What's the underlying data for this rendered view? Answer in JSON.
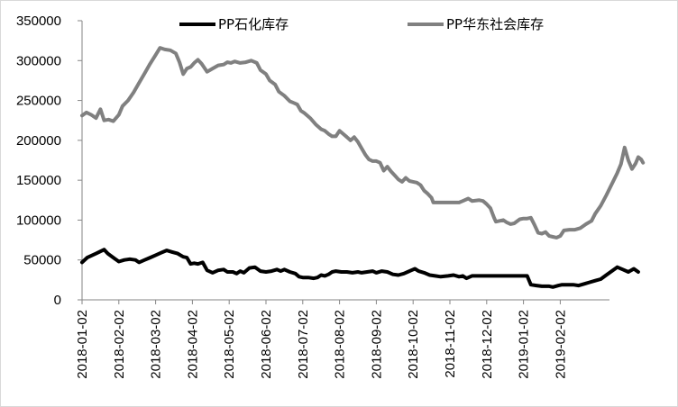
{
  "chart_data": {
    "type": "line",
    "title": "",
    "xlabel": "",
    "ylabel": "",
    "ylim": [
      0,
      350000
    ],
    "y_ticks": [
      "0",
      "50000",
      "100000",
      "150000",
      "200000",
      "250000",
      "300000",
      "350000"
    ],
    "x_tick_labels": [
      "2018-01-02",
      "2018-02-02",
      "2018-03-02",
      "2018-04-02",
      "2018-05-02",
      "2018-06-02",
      "2018-07-02",
      "2018-08-02",
      "2018-09-02",
      "2018-10-02",
      "2018-11-02",
      "2018-12-02",
      "2019-01-02",
      "2019-02-02"
    ],
    "grid": false,
    "legend_position": "top",
    "series": [
      {
        "name": "PP石化库存",
        "color": "#000000",
        "points": [
          [
            0,
            47000
          ],
          [
            0.14,
            53000
          ],
          [
            0.38,
            58000
          ],
          [
            0.6,
            63000
          ],
          [
            0.7,
            58000
          ],
          [
            0.85,
            53000
          ],
          [
            1.0,
            48000
          ],
          [
            1.15,
            50000
          ],
          [
            1.3,
            51000
          ],
          [
            1.45,
            50000
          ],
          [
            1.55,
            47000
          ],
          [
            1.7,
            50000
          ],
          [
            1.85,
            53000
          ],
          [
            2.0,
            56000
          ],
          [
            2.15,
            59000
          ],
          [
            2.3,
            62000
          ],
          [
            2.45,
            60000
          ],
          [
            2.6,
            58000
          ],
          [
            2.75,
            54000
          ],
          [
            2.85,
            53000
          ],
          [
            2.95,
            45000
          ],
          [
            3.05,
            46000
          ],
          [
            3.15,
            45000
          ],
          [
            3.28,
            47000
          ],
          [
            3.4,
            37000
          ],
          [
            3.55,
            34000
          ],
          [
            3.7,
            37000
          ],
          [
            3.85,
            38000
          ],
          [
            3.95,
            35000
          ],
          [
            4.1,
            35000
          ],
          [
            4.2,
            33000
          ],
          [
            4.3,
            36000
          ],
          [
            4.4,
            34000
          ],
          [
            4.55,
            40000
          ],
          [
            4.7,
            41000
          ],
          [
            4.85,
            36000
          ],
          [
            5.0,
            35000
          ],
          [
            5.15,
            36000
          ],
          [
            5.3,
            38000
          ],
          [
            5.4,
            36000
          ],
          [
            5.5,
            38000
          ],
          [
            5.65,
            35000
          ],
          [
            5.8,
            33000
          ],
          [
            5.9,
            29000
          ],
          [
            6.0,
            28000
          ],
          [
            6.15,
            28000
          ],
          [
            6.3,
            27000
          ],
          [
            6.4,
            28000
          ],
          [
            6.5,
            31000
          ],
          [
            6.6,
            30000
          ],
          [
            6.7,
            32000
          ],
          [
            6.8,
            35000
          ],
          [
            6.9,
            36000
          ],
          [
            7.05,
            35000
          ],
          [
            7.2,
            35000
          ],
          [
            7.35,
            34000
          ],
          [
            7.5,
            35000
          ],
          [
            7.6,
            34000
          ],
          [
            7.75,
            35000
          ],
          [
            7.9,
            36000
          ],
          [
            8.0,
            34000
          ],
          [
            8.15,
            36000
          ],
          [
            8.3,
            35000
          ],
          [
            8.45,
            32000
          ],
          [
            8.6,
            31000
          ],
          [
            8.75,
            33000
          ],
          [
            8.85,
            35000
          ],
          [
            8.95,
            37000
          ],
          [
            9.05,
            39000
          ],
          [
            9.15,
            36000
          ],
          [
            9.3,
            34000
          ],
          [
            9.45,
            31000
          ],
          [
            9.6,
            30000
          ],
          [
            9.75,
            29000
          ],
          [
            9.95,
            30000
          ],
          [
            10.1,
            31000
          ],
          [
            10.25,
            29000
          ],
          [
            10.35,
            30000
          ],
          [
            10.45,
            27000
          ],
          [
            10.6,
            30000
          ],
          [
            10.8,
            30000
          ],
          [
            11.0,
            30000
          ],
          [
            11.3,
            30000
          ],
          [
            11.6,
            30000
          ],
          [
            11.8,
            30000
          ],
          [
            11.95,
            30000
          ],
          [
            12.1,
            30000
          ],
          [
            12.2,
            19000
          ],
          [
            12.35,
            18000
          ],
          [
            12.5,
            17000
          ],
          [
            12.7,
            17000
          ],
          [
            12.8,
            16000
          ],
          [
            12.95,
            18000
          ],
          [
            13.05,
            19000
          ],
          [
            13.2,
            19000
          ],
          [
            13.35,
            19000
          ],
          [
            13.5,
            18000
          ],
          [
            13.65,
            20000
          ],
          [
            13.8,
            22000
          ],
          [
            13.95,
            24000
          ],
          [
            14.1,
            26000
          ],
          [
            14.25,
            31000
          ],
          [
            14.4,
            36000
          ],
          [
            14.55,
            41000
          ],
          [
            14.7,
            38000
          ],
          [
            14.85,
            35000
          ],
          [
            15.0,
            39000
          ],
          [
            15.12,
            35000
          ]
        ]
      },
      {
        "name": "PP华东社会库存",
        "color": "#808080",
        "points": [
          [
            0,
            231000
          ],
          [
            0.12,
            235000
          ],
          [
            0.25,
            232000
          ],
          [
            0.38,
            228000
          ],
          [
            0.5,
            239000
          ],
          [
            0.6,
            225000
          ],
          [
            0.72,
            226000
          ],
          [
            0.85,
            224000
          ],
          [
            1.0,
            232000
          ],
          [
            1.1,
            243000
          ],
          [
            1.25,
            250000
          ],
          [
            1.4,
            260000
          ],
          [
            1.55,
            272000
          ],
          [
            1.7,
            284000
          ],
          [
            1.85,
            296000
          ],
          [
            2.0,
            307000
          ],
          [
            2.12,
            316000
          ],
          [
            2.25,
            314000
          ],
          [
            2.4,
            313000
          ],
          [
            2.55,
            309000
          ],
          [
            2.65,
            298000
          ],
          [
            2.75,
            283000
          ],
          [
            2.85,
            290000
          ],
          [
            2.95,
            292000
          ],
          [
            3.05,
            297000
          ],
          [
            3.15,
            301000
          ],
          [
            3.25,
            296000
          ],
          [
            3.4,
            286000
          ],
          [
            3.55,
            290000
          ],
          [
            3.7,
            294000
          ],
          [
            3.85,
            295000
          ],
          [
            3.95,
            298000
          ],
          [
            4.05,
            297000
          ],
          [
            4.15,
            299000
          ],
          [
            4.3,
            297000
          ],
          [
            4.45,
            298000
          ],
          [
            4.6,
            300000
          ],
          [
            4.75,
            297000
          ],
          [
            4.85,
            288000
          ],
          [
            5.0,
            283000
          ],
          [
            5.1,
            275000
          ],
          [
            5.25,
            270000
          ],
          [
            5.35,
            261000
          ],
          [
            5.5,
            256000
          ],
          [
            5.65,
            249000
          ],
          [
            5.75,
            247000
          ],
          [
            5.85,
            245000
          ],
          [
            5.95,
            237000
          ],
          [
            6.05,
            234000
          ],
          [
            6.2,
            228000
          ],
          [
            6.35,
            220000
          ],
          [
            6.5,
            214000
          ],
          [
            6.6,
            212000
          ],
          [
            6.7,
            208000
          ],
          [
            6.8,
            205000
          ],
          [
            6.9,
            205000
          ],
          [
            7.0,
            212000
          ],
          [
            7.1,
            208000
          ],
          [
            7.2,
            204000
          ],
          [
            7.3,
            200000
          ],
          [
            7.4,
            204000
          ],
          [
            7.5,
            198000
          ],
          [
            7.6,
            190000
          ],
          [
            7.7,
            182000
          ],
          [
            7.8,
            176000
          ],
          [
            7.9,
            174000
          ],
          [
            8.0,
            174000
          ],
          [
            8.1,
            172000
          ],
          [
            8.2,
            162000
          ],
          [
            8.3,
            167000
          ],
          [
            8.4,
            161000
          ],
          [
            8.5,
            156000
          ],
          [
            8.6,
            151000
          ],
          [
            8.7,
            148000
          ],
          [
            8.8,
            153000
          ],
          [
            8.9,
            149000
          ],
          [
            9.0,
            148000
          ],
          [
            9.1,
            147000
          ],
          [
            9.2,
            144000
          ],
          [
            9.3,
            137000
          ],
          [
            9.4,
            133000
          ],
          [
            9.5,
            128000
          ],
          [
            9.55,
            122000
          ],
          [
            9.7,
            122000
          ],
          [
            9.9,
            122000
          ],
          [
            10.1,
            122000
          ],
          [
            10.25,
            122000
          ],
          [
            10.35,
            124000
          ],
          [
            10.5,
            127000
          ],
          [
            10.6,
            124000
          ],
          [
            10.8,
            125000
          ],
          [
            10.9,
            124000
          ],
          [
            11.0,
            120000
          ],
          [
            11.1,
            115000
          ],
          [
            11.2,
            103000
          ],
          [
            11.25,
            98000
          ],
          [
            11.35,
            99000
          ],
          [
            11.45,
            100000
          ],
          [
            11.55,
            97000
          ],
          [
            11.65,
            95000
          ],
          [
            11.75,
            96000
          ],
          [
            11.9,
            101000
          ],
          [
            12.0,
            102000
          ],
          [
            12.1,
            102000
          ],
          [
            12.2,
            103000
          ],
          [
            12.3,
            94000
          ],
          [
            12.4,
            84000
          ],
          [
            12.5,
            83000
          ],
          [
            12.6,
            85000
          ],
          [
            12.7,
            80000
          ],
          [
            12.8,
            79000
          ],
          [
            12.9,
            78000
          ],
          [
            13.0,
            80000
          ],
          [
            13.1,
            87000
          ],
          [
            13.25,
            88000
          ],
          [
            13.4,
            88000
          ],
          [
            13.55,
            90000
          ],
          [
            13.7,
            95000
          ],
          [
            13.85,
            99000
          ],
          [
            13.95,
            108000
          ],
          [
            14.1,
            118000
          ],
          [
            14.25,
            131000
          ],
          [
            14.4,
            145000
          ],
          [
            14.55,
            159000
          ],
          [
            14.65,
            170000
          ],
          [
            14.75,
            191000
          ],
          [
            14.85,
            175000
          ],
          [
            14.95,
            164000
          ],
          [
            15.05,
            171000
          ],
          [
            15.12,
            179000
          ],
          [
            15.2,
            176000
          ],
          [
            15.25,
            172000
          ]
        ]
      }
    ]
  }
}
